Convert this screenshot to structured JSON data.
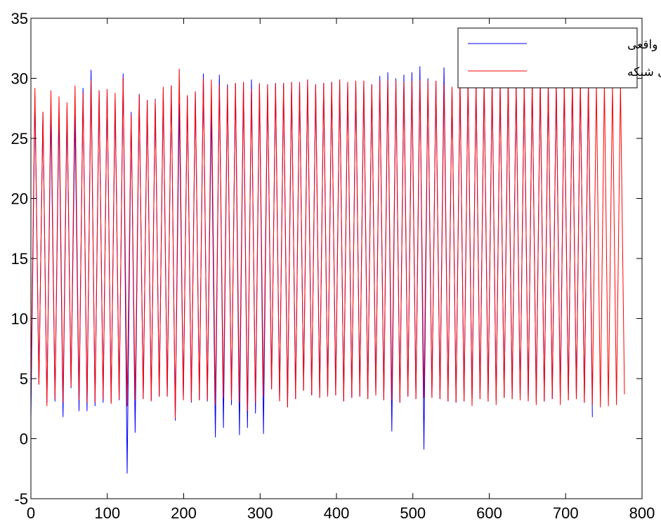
{
  "chart_data": {
    "type": "line",
    "title": "",
    "xlabel": "",
    "ylabel": "",
    "xlim": [
      0,
      800
    ],
    "ylim": [
      -5,
      35
    ],
    "xticks": [
      0,
      100,
      200,
      300,
      400,
      500,
      600,
      700,
      800
    ],
    "yticks": [
      -5,
      0,
      5,
      10,
      15,
      20,
      25,
      30,
      35
    ],
    "xtick_labels": [
      "0",
      "100",
      "200",
      "300",
      "400",
      "500",
      "600",
      "700",
      "800"
    ],
    "ytick_labels": [
      "-5",
      "0",
      "5",
      "10",
      "15",
      "20",
      "25",
      "30",
      "35"
    ],
    "grid": false,
    "legend_position": "top-right",
    "series": [
      {
        "name": "داده های واقعی",
        "color": "#0000ff",
        "length": 740,
        "period": 10.5,
        "peaks": [
          28.5,
          27.2,
          27.2,
          27.3,
          27.4,
          26.9,
          29.2,
          30.7,
          29.0,
          29.1,
          28.3,
          30.4,
          27.2,
          28.7,
          28.2,
          28.3,
          28.9,
          29.4,
          27.9,
          28.5,
          28.9,
          30.4,
          27.6,
          30.3,
          29.5,
          29.6,
          29.7,
          29.9,
          29.5,
          29.5,
          29.6,
          29.6,
          29.7,
          29.7,
          29.9,
          29.5,
          29.6,
          29.7,
          29.9,
          29.7,
          29.8,
          29.8,
          29.5,
          30.2,
          30.5,
          30.0,
          30.3,
          30.5,
          31.0,
          30.0,
          29.8,
          30.9,
          29.3,
          29.8,
          30.0,
          29.6,
          29.9,
          29.8,
          29.6,
          29.9,
          29.6,
          29.7,
          29.8,
          29.9,
          29.6,
          29.6,
          29.7,
          29.9,
          29.8,
          29.7
        ],
        "troughs": [
          1.8,
          4.5,
          3.0,
          3.1,
          1.8,
          4.2,
          2.3,
          2.3,
          2.7,
          3.0,
          3.0,
          3.2,
          -2.9,
          0.5,
          3.3,
          3.2,
          3.5,
          3.5,
          1.5,
          3.2,
          3.0,
          3.2,
          3.1,
          0.1,
          0.9,
          2.8,
          0.3,
          0.9,
          2.1,
          0.4,
          4.1,
          3.1,
          2.6,
          3.3,
          4.0,
          3.6,
          3.4,
          3.5,
          3.6,
          3.1,
          3.4,
          3.5,
          3.3,
          3.6,
          3.2,
          0.6,
          3.0,
          3.5,
          3.3,
          -0.9,
          3.4,
          3.3,
          3.1,
          3.0,
          3.1,
          3.0,
          3.3,
          3.1,
          3.2,
          3.4,
          3.3,
          3.2,
          3.1,
          3.0,
          3.1,
          3.3,
          3.4,
          3.2,
          3.3,
          3.0
        ]
      },
      {
        "name": "خروجی شبکه",
        "color": "#ff0000",
        "length": 780,
        "period": 10.5,
        "peaks": [
          29.2,
          27.2,
          29.0,
          28.5,
          28.0,
          29.4,
          28.8,
          29.8,
          29.0,
          29.1,
          28.8,
          30.1,
          27.0,
          28.6,
          28.2,
          28.2,
          29.3,
          29.4,
          30.8,
          28.6,
          28.9,
          30.0,
          29.9,
          29.5,
          29.3,
          29.6,
          29.7,
          29.1,
          29.6,
          29.5,
          29.6,
          29.6,
          29.7,
          29.7,
          29.9,
          29.5,
          29.6,
          29.7,
          29.9,
          29.7,
          29.8,
          29.8,
          29.5,
          29.8,
          29.9,
          29.8,
          29.7,
          29.8,
          29.9,
          29.8,
          29.8,
          29.5,
          29.3,
          29.8,
          29.8,
          29.6,
          29.9,
          29.8,
          29.6,
          29.9,
          29.6,
          29.7,
          29.8,
          29.9,
          29.6,
          29.6,
          29.7,
          29.9,
          29.8,
          29.7,
          29.6,
          29.7,
          29.5,
          29.6
        ],
        "troughs": [
          3.7,
          4.5,
          2.7,
          3.3,
          3.0,
          4.3,
          3.2,
          3.0,
          3.0,
          3.3,
          2.9,
          3.3,
          2.7,
          3.2,
          3.3,
          3.1,
          3.5,
          3.5,
          1.7,
          3.2,
          3.1,
          3.2,
          3.2,
          2.8,
          3.4,
          3.2,
          3.0,
          2.3,
          3.0,
          3.5,
          4.1,
          3.1,
          2.6,
          3.3,
          4.0,
          3.6,
          3.4,
          3.5,
          3.6,
          3.1,
          3.4,
          3.5,
          3.3,
          3.6,
          3.2,
          3.2,
          3.0,
          3.5,
          3.3,
          3.4,
          3.4,
          3.3,
          3.1,
          3.0,
          3.1,
          2.7,
          3.3,
          3.1,
          2.8,
          3.4,
          3.3,
          3.2,
          3.1,
          2.8,
          3.1,
          3.3,
          2.8,
          3.2,
          3.3,
          3.0,
          2.8,
          2.6,
          2.7,
          2.8
        ]
      }
    ]
  }
}
